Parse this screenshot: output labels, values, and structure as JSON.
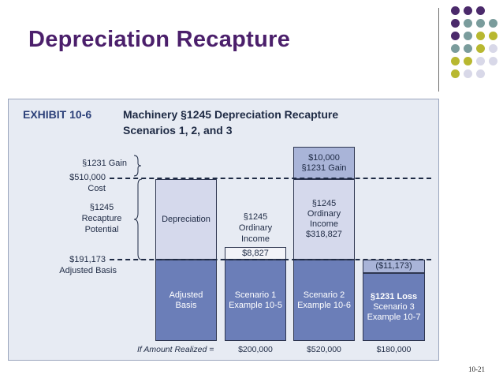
{
  "slide": {
    "title": "Depreciation Recapture",
    "page_number": "10-21"
  },
  "decor": {
    "dot_colors": [
      "#4b2a6b",
      "#7a9c9c",
      "#b8b830",
      "#d8d8e8"
    ]
  },
  "exhibit": {
    "label": "EXHIBIT 10-6",
    "title_line1": "Machinery §1245 Depreciation Recapture",
    "title_line2": "Scenarios 1, 2, and 3",
    "left_labels": {
      "gain": "§1231 Gain",
      "cost_value": "$510,000",
      "cost": "Cost",
      "recapture_1": "§1245",
      "recapture_2": "Recapture",
      "recapture_3": "Potential",
      "basis_value": "$191,173",
      "basis": "Adjusted Basis"
    },
    "columns": {
      "col1": {
        "top": "Depreciation",
        "bottom_1": "Adjusted",
        "bottom_2": "Basis"
      },
      "col2": {
        "label_1": "§1245",
        "label_2": "Ordinary",
        "label_3": "Income",
        "value": "$8,827",
        "bottom_1": "Scenario 1",
        "bottom_2": "Example 10-5"
      },
      "col3": {
        "top_1": "$10,000",
        "top_2": "§1231 Gain",
        "mid_1": "§1245",
        "mid_2": "Ordinary",
        "mid_3": "Income",
        "mid_4": "$318,827",
        "bottom_1": "Scenario 2",
        "bottom_2": "Example 10-6"
      },
      "col4": {
        "top": "($11,173)",
        "bottom_1": "§1231 Loss",
        "bottom_2": "Scenario 3",
        "bottom_3": "Example 10-7"
      }
    },
    "amount_realized": {
      "label": "If Amount Realized =",
      "values": [
        "$200,000",
        "$520,000",
        "$180,000"
      ]
    }
  }
}
